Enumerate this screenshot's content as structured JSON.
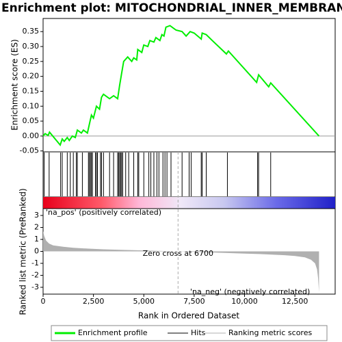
{
  "chart_data": [
    {
      "type": "line",
      "title": "Enrichment plot: MITOCHONDRIAL_INNER_MEMBRANE",
      "ylabel": "Enrichment score (ES)",
      "x": [
        0,
        100,
        250,
        320,
        850,
        950,
        1050,
        1200,
        1300,
        1450,
        1600,
        1700,
        1900,
        2000,
        2200,
        2300,
        2400,
        2500,
        2650,
        2800,
        2900,
        3000,
        3300,
        3500,
        3700,
        3800,
        3900,
        4000,
        4200,
        4400,
        4500,
        4650,
        4700,
        4900,
        5000,
        5200,
        5300,
        5500,
        5600,
        5800,
        5900,
        6000,
        6100,
        6300,
        6600,
        6900,
        7100,
        7300,
        7500,
        7850,
        7900,
        8100,
        8400,
        9100,
        9200,
        10600,
        10700,
        11200,
        11300,
        13700
      ],
      "series": [
        {
          "name": "Enrichment profile",
          "color": "#00ee00",
          "values": [
            0,
            0.008,
            0.002,
            0.013,
            -0.03,
            -0.01,
            -0.018,
            -0.005,
            -0.015,
            0,
            -0.005,
            0.02,
            0.01,
            0.02,
            0.01,
            0.04,
            0.07,
            0.06,
            0.1,
            0.09,
            0.13,
            0.14,
            0.125,
            0.135,
            0.125,
            0.17,
            0.21,
            0.25,
            0.265,
            0.25,
            0.262,
            0.255,
            0.29,
            0.28,
            0.305,
            0.3,
            0.32,
            0.315,
            0.33,
            0.32,
            0.34,
            0.335,
            0.365,
            0.37,
            0.355,
            0.35,
            0.335,
            0.35,
            0.345,
            0.325,
            0.345,
            0.34,
            0.32,
            0.275,
            0.285,
            0.18,
            0.205,
            0.165,
            0.178,
            0
          ]
        }
      ],
      "xlim": [
        0,
        14500
      ],
      "ylim": [
        -0.053,
        0.394
      ],
      "yticks": [
        -0.05,
        {
          "value": 0,
          "label": "0.00"
        },
        0.05,
        {
          "value": 0.1,
          "label": "0.10"
        },
        0.15,
        {
          "value": 0.2,
          "label": "0.20"
        },
        0.25,
        {
          "value": 0.3,
          "label": "0.30"
        },
        0.35
      ]
    },
    {
      "type": "rug",
      "xlim": [
        0,
        14500
      ],
      "series": [
        {
          "name": "Hits",
          "color": "#000000",
          "x": [
            50,
            300,
            870,
            950,
            1200,
            1350,
            1500,
            1650,
            1700,
            1950,
            2250,
            2300,
            2350,
            2400,
            2450,
            2600,
            2650,
            2700,
            2850,
            2900,
            3000,
            3300,
            3500,
            3700,
            3750,
            3800,
            3850,
            3900,
            3950,
            4100,
            4250,
            4500,
            4700,
            4750,
            5000,
            5250,
            5350,
            5500,
            5650,
            5750,
            5950,
            6050,
            6150,
            6350,
            6900,
            7250,
            7350,
            7850,
            7900,
            8100,
            9150,
            10650,
            10700,
            11300
          ]
        }
      ]
    },
    {
      "type": "area",
      "xlabel": "Rank in Ordered Dataset",
      "ylabel": "Ranked list metric (PreRanked)",
      "x": [
        0,
        50,
        150,
        300,
        500,
        1000,
        1500,
        2000,
        3000,
        4000,
        5000,
        6000,
        6700,
        7500,
        8500,
        10000,
        11000,
        12000,
        12500,
        13000,
        13300,
        13500,
        13600,
        13650,
        13700
      ],
      "series": [
        {
          "name": "Ranking metric scores",
          "color": "#b0b0b0",
          "values": [
            1.7,
            1.3,
            0.9,
            0.65,
            0.5,
            0.38,
            0.3,
            0.25,
            0.17,
            0.12,
            0.08,
            0.03,
            0,
            -0.04,
            -0.1,
            -0.18,
            -0.24,
            -0.32,
            -0.38,
            -0.5,
            -0.7,
            -1.0,
            -1.5,
            -2.2,
            -3.4
          ]
        }
      ],
      "xlim": [
        0,
        14500
      ],
      "ylim": [
        -3.57,
        3.57
      ],
      "xticks": [
        0,
        {
          "value": 2500,
          "label": "2,500"
        },
        {
          "value": 5000,
          "label": "5,000"
        },
        {
          "value": 7500,
          "label": "7,500"
        },
        {
          "value": 10000,
          "label": "10,000"
        },
        {
          "value": 12500,
          "label": "12,500"
        }
      ],
      "yticks": [
        3,
        2,
        1,
        0,
        -1,
        -2,
        -3
      ],
      "zero_cross": 6700,
      "annotations": [
        "'na_pos' (positively correlated)",
        "Zero cross at 6700",
        "'na_neg' (negatively correlated)"
      ]
    }
  ]
}
